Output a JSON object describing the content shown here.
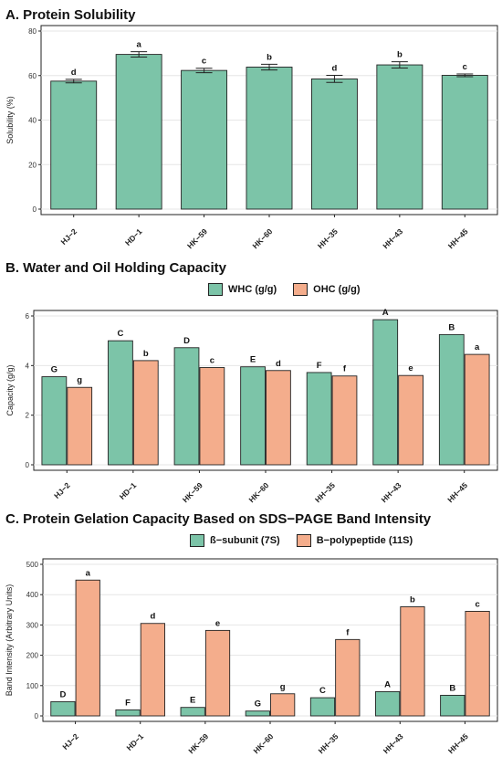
{
  "colors": {
    "green": "#7cc4a8",
    "orange": "#f4ad8c",
    "axis": "#222222",
    "grid": "#e6e6e6"
  },
  "chart_data": [
    {
      "type": "bar",
      "title": "A. Protein Solubility",
      "xlabel": "",
      "ylabel": "Solubility (%)",
      "ylim": [
        0,
        80
      ],
      "yticks": [
        0,
        20,
        40,
        60,
        80
      ],
      "grid": true,
      "categories": [
        "HJ−2",
        "HD−1",
        "HK−59",
        "HK−60",
        "HH−35",
        "HH−43",
        "HH−45"
      ],
      "series": [
        {
          "values": [
            57.5,
            69.5,
            62.3,
            63.8,
            58.5,
            64.8,
            60.1
          ],
          "errors": [
            0.8,
            1.2,
            1.0,
            1.3,
            1.6,
            1.4,
            0.6
          ],
          "letters": [
            "d",
            "a",
            "c",
            "b",
            "d",
            "b",
            "c"
          ],
          "color": "#7cc4a8"
        }
      ]
    },
    {
      "type": "bar",
      "title": "B. Water and Oil Holding Capacity",
      "xlabel": "",
      "ylabel": "Capacity (g/g)",
      "ylim": [
        0,
        6
      ],
      "yticks": [
        0,
        2,
        4,
        6
      ],
      "grid": true,
      "legend_position": "top",
      "categories": [
        "HJ−2",
        "HD−1",
        "HK−59",
        "HK−60",
        "HH−35",
        "HH−43",
        "HH−45"
      ],
      "series": [
        {
          "name": "WHC (g/g)",
          "values": [
            3.55,
            5.0,
            4.72,
            3.95,
            3.72,
            5.85,
            5.25
          ],
          "letters": [
            "G",
            "C",
            "D",
            "E",
            "F",
            "A",
            "B"
          ],
          "color": "#7cc4a8"
        },
        {
          "name": "OHC (g/g)",
          "values": [
            3.12,
            4.2,
            3.92,
            3.8,
            3.58,
            3.6,
            4.45
          ],
          "letters": [
            "g",
            "b",
            "c",
            "d",
            "f",
            "e",
            "a"
          ],
          "color": "#f4ad8c"
        }
      ]
    },
    {
      "type": "bar",
      "title": "C. Protein Gelation Capacity Based on SDS−PAGE Band Intensity",
      "xlabel": "",
      "ylabel": "Band Intensity (Arbitrary Units)",
      "ylim": [
        0,
        500
      ],
      "yticks": [
        0,
        100,
        200,
        300,
        400,
        500
      ],
      "grid": true,
      "legend_position": "top",
      "categories": [
        "HJ−2",
        "HD−1",
        "HK−59",
        "HK−60",
        "HH−35",
        "HH−43",
        "HH−45"
      ],
      "series": [
        {
          "name": "ß−subunit (7S)",
          "values": [
            47,
            20,
            28,
            16,
            60,
            80,
            68
          ],
          "letters": [
            "D",
            "F",
            "E",
            "G",
            "C",
            "A",
            "B"
          ],
          "color": "#7cc4a8"
        },
        {
          "name": "B−polypeptide (11S)",
          "values": [
            448,
            305,
            282,
            73,
            252,
            360,
            345
          ],
          "letters": [
            "a",
            "d",
            "e",
            "g",
            "f",
            "b",
            "c"
          ],
          "color": "#f4ad8c"
        }
      ]
    }
  ]
}
